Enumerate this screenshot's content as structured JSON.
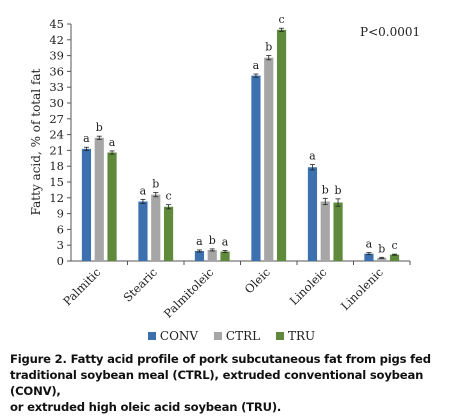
{
  "chart_data": {
    "type": "bar",
    "title": "",
    "xlabel": "",
    "ylabel": "Fatty acid, % of total fat",
    "ylim": [
      0,
      45
    ],
    "yticks": [
      "0",
      "3",
      "6",
      "9",
      "12",
      "15",
      "18",
      "21",
      "24",
      "27",
      "30",
      "33",
      "36",
      "39",
      "42",
      "45"
    ],
    "categories": [
      "Palmitic",
      "Stearic",
      "Palmitoleic",
      "Oleic",
      "Linoleic",
      "Linolenic"
    ],
    "series": [
      {
        "name": "CONV",
        "color": "#3c70ae",
        "values": [
          21.3,
          11.3,
          1.9,
          35.2,
          17.8,
          1.4
        ]
      },
      {
        "name": "CTRL",
        "color": "#a6a6a6",
        "values": [
          23.4,
          12.6,
          2.1,
          38.6,
          11.3,
          0.6
        ]
      },
      {
        "name": "TRU",
        "color": "#5f8a3c",
        "values": [
          20.6,
          10.3,
          1.8,
          43.9,
          11.1,
          1.2
        ]
      }
    ],
    "errors": [
      [
        0.3,
        0.4,
        0.2,
        0.3,
        0.5,
        0.2
      ],
      [
        0.3,
        0.4,
        0.2,
        0.4,
        0.6,
        0.1
      ],
      [
        0.3,
        0.4,
        0.2,
        0.3,
        0.7,
        0.1
      ]
    ],
    "significance": [
      [
        "a",
        "a",
        "a",
        "a",
        "a",
        "a"
      ],
      [
        "b",
        "b",
        "b",
        "b",
        "b",
        "b"
      ],
      [
        "a",
        "c",
        "a",
        "c",
        "b",
        "c"
      ]
    ],
    "annotation": "P<0.0001",
    "grid": false,
    "legend_position": "bottom"
  },
  "caption": {
    "line1": "Figure 2. Fatty acid profile of pork subcutaneous fat from pigs fed",
    "line2": "traditional soybean meal (CTRL), extruded conventional soybean (CONV),",
    "line3": "or extruded high oleic acid soybean (TRU)."
  }
}
